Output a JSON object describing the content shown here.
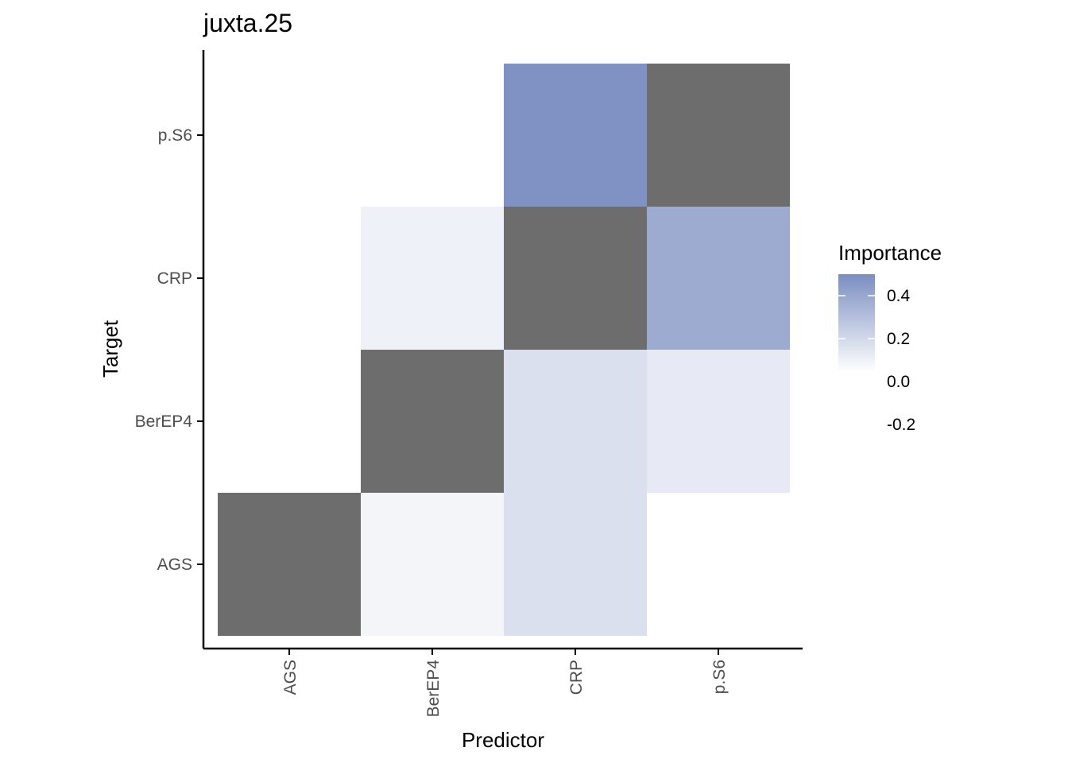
{
  "chart_data": {
    "type": "heatmap",
    "title": "juxta.25",
    "xlabel": "Predictor",
    "ylabel": "Target",
    "x_categories": [
      "AGS",
      "BerEP4",
      "CRP",
      "p.S6"
    ],
    "y_categories": [
      "AGS",
      "BerEP4",
      "CRP",
      "p.S6"
    ],
    "cells": [
      {
        "x": "AGS",
        "y": "AGS",
        "value": null
      },
      {
        "x": "BerEP4",
        "y": "AGS",
        "value": 0.0
      },
      {
        "x": "CRP",
        "y": "AGS",
        "value": 0.1
      },
      {
        "x": "BerEP4",
        "y": "BerEP4",
        "value": null
      },
      {
        "x": "CRP",
        "y": "BerEP4",
        "value": 0.1
      },
      {
        "x": "p.S6",
        "y": "BerEP4",
        "value": 0.05
      },
      {
        "x": "BerEP4",
        "y": "CRP",
        "value": 0.02
      },
      {
        "x": "CRP",
        "y": "CRP",
        "value": null
      },
      {
        "x": "p.S6",
        "y": "CRP",
        "value": 0.36
      },
      {
        "x": "CRP",
        "y": "p.S6",
        "value": 0.48
      },
      {
        "x": "p.S6",
        "y": "p.S6",
        "value": null
      }
    ],
    "na_color": "#6d6d6d",
    "legend": {
      "title": "Importance",
      "position": "right",
      "low_color": "#ffffff",
      "high_color": "#7b8ec1",
      "range": [
        -0.05,
        0.5
      ],
      "ticks": [
        {
          "label": "0.4",
          "value": 0.4
        },
        {
          "label": "0.2",
          "value": 0.2
        },
        {
          "label": "0.0",
          "value": 0.0
        },
        {
          "label": "-0.2",
          "value": -0.2
        }
      ]
    }
  }
}
